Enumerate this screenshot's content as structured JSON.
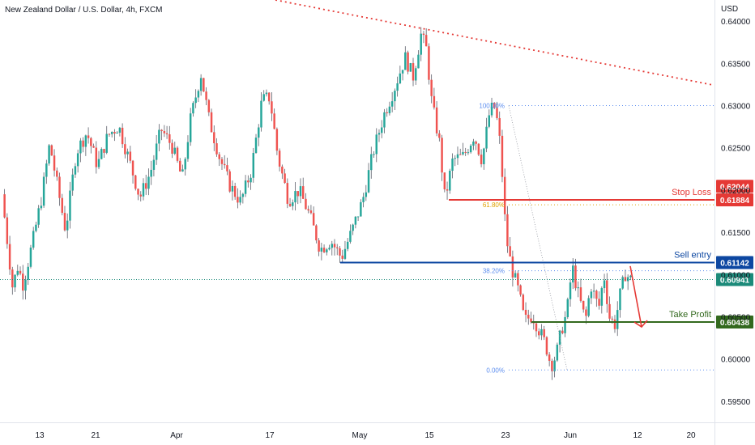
{
  "title": "New Zealand Dollar / U.S. Dollar, 4h, FXCM",
  "currency": "USD",
  "colors": {
    "up": "#26a69a",
    "down": "#ef5350",
    "stop_loss": "#e53935",
    "sell_entry": "#0d47a1",
    "take_profit": "#33691e",
    "current": "#1b8a79",
    "trendline": "#e53935",
    "fib": "#5b8def",
    "fib_618": "#e0a100"
  },
  "chart_data": {
    "type": "candlestick",
    "symbol": "NZDUSD",
    "timeframe": "4h",
    "broker": "FXCM",
    "ylim": [
      0.5925,
      0.6425
    ],
    "y_ticks": [
      "0.64000",
      "0.63500",
      "0.63000",
      "0.62500",
      "0.62000",
      "0.61500",
      "0.61000",
      "0.60500",
      "0.60000",
      "0.59500"
    ],
    "x_ticks": [
      "13",
      "21",
      "Apr",
      "17",
      "May",
      "15",
      "23",
      "Jun",
      "12",
      "20"
    ],
    "price_path": [
      [
        0,
        0.6195
      ],
      [
        8,
        0.6085
      ],
      [
        12,
        0.611
      ],
      [
        16,
        0.6088
      ],
      [
        24,
        0.6145
      ],
      [
        30,
        0.6192
      ],
      [
        36,
        0.6255
      ],
      [
        42,
        0.6203
      ],
      [
        48,
        0.6152
      ],
      [
        56,
        0.6245
      ],
      [
        64,
        0.6268
      ],
      [
        72,
        0.6229
      ],
      [
        80,
        0.6265
      ],
      [
        88,
        0.6276
      ],
      [
        96,
        0.6235
      ],
      [
        104,
        0.6191
      ],
      [
        112,
        0.6221
      ],
      [
        120,
        0.6272
      ],
      [
        128,
        0.6253
      ],
      [
        136,
        0.6213
      ],
      [
        142,
        0.6282
      ],
      [
        150,
        0.6338
      ],
      [
        156,
        0.6285
      ],
      [
        164,
        0.6239
      ],
      [
        172,
        0.6205
      ],
      [
        180,
        0.6186
      ],
      [
        188,
        0.6223
      ],
      [
        196,
        0.6306
      ],
      [
        202,
        0.631
      ],
      [
        208,
        0.624
      ],
      [
        216,
        0.6188
      ],
      [
        224,
        0.62
      ],
      [
        232,
        0.617
      ],
      [
        240,
        0.613
      ],
      [
        248,
        0.614
      ],
      [
        256,
        0.612
      ],
      [
        264,
        0.6152
      ],
      [
        272,
        0.6188
      ],
      [
        280,
        0.6245
      ],
      [
        288,
        0.6289
      ],
      [
        296,
        0.6321
      ],
      [
        304,
        0.6357
      ],
      [
        310,
        0.6334
      ],
      [
        316,
        0.6384
      ],
      [
        320,
        0.6367
      ],
      [
        324,
        0.6305
      ],
      [
        330,
        0.6255
      ],
      [
        334,
        0.6189
      ],
      [
        340,
        0.6236
      ],
      [
        348,
        0.624
      ],
      [
        356,
        0.6265
      ],
      [
        362,
        0.6235
      ],
      [
        368,
        0.6295
      ],
      [
        372,
        0.6298
      ],
      [
        376,
        0.625
      ],
      [
        380,
        0.6146
      ],
      [
        384,
        0.611
      ],
      [
        390,
        0.6077
      ],
      [
        394,
        0.6045
      ],
      [
        400,
        0.6052
      ],
      [
        404,
        0.6038
      ],
      [
        410,
        0.6017
      ],
      [
        414,
        0.5992
      ],
      [
        418,
        0.6005
      ],
      [
        422,
        0.6035
      ],
      [
        426,
        0.6055
      ],
      [
        430,
        0.611
      ],
      [
        434,
        0.608
      ],
      [
        440,
        0.6045
      ],
      [
        444,
        0.6088
      ],
      [
        450,
        0.606
      ],
      [
        454,
        0.61
      ],
      [
        458,
        0.605
      ],
      [
        462,
        0.604
      ],
      [
        466,
        0.6075
      ],
      [
        470,
        0.6101
      ],
      [
        474,
        0.6094
      ]
    ],
    "levels": [
      {
        "name": "Stop Loss",
        "price": 0.61884,
        "tag": "0.61884"
      },
      {
        "name": "Sell entry",
        "price": 0.61142,
        "tag": "0.61142"
      },
      {
        "name": "Take Profit",
        "price": 0.60438,
        "tag": "0.60438"
      }
    ],
    "current_price": {
      "price": 0.60941,
      "tag": "0.60941"
    },
    "price_tag_high": {
      "price": 0.62044,
      "tag": "0.62044"
    },
    "fibonacci": [
      {
        "label": "100.00%",
        "price": 0.63
      },
      {
        "label": "61.80%",
        "price": 0.61825
      },
      {
        "label": "38.20%",
        "price": 0.61045
      },
      {
        "label": "0.00%",
        "price": 0.5987
      }
    ],
    "trendline": [
      [
        0.6428,
        0
      ],
      [
        0.6325,
        1
      ]
    ],
    "projection_arrow": {
      "from": 0.611,
      "to": 0.6038
    }
  }
}
